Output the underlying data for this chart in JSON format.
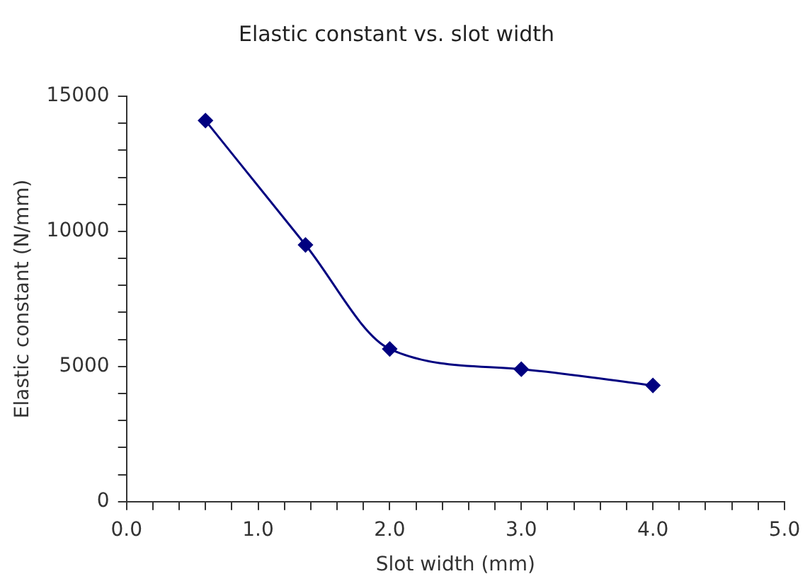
{
  "chart_data": {
    "type": "line",
    "title": "Elastic constant vs. slot width",
    "xlabel": "Slot width (mm)",
    "ylabel": "Elastic constant (N/mm)",
    "x": [
      0.6,
      1.36,
      2.0,
      3.0,
      4.0
    ],
    "series": [
      {
        "color": "#000080",
        "values": [
          14100,
          9500,
          5650,
          4900,
          4300
        ]
      }
    ],
    "xlim": [
      0,
      5
    ],
    "xticks": [
      {
        "value": 0,
        "label": "0.0"
      },
      {
        "value": 0.2,
        "label": null
      },
      {
        "value": 0.4,
        "label": null
      },
      {
        "value": 0.6,
        "label": null
      },
      {
        "value": 0.8,
        "label": null
      },
      {
        "value": 1,
        "label": "1.0"
      },
      {
        "value": 1.2,
        "label": null
      },
      {
        "value": 1.4,
        "label": null
      },
      {
        "value": 1.6,
        "label": null
      },
      {
        "value": 1.8,
        "label": null
      },
      {
        "value": 2,
        "label": "2.0"
      },
      {
        "value": 2.2,
        "label": null
      },
      {
        "value": 2.4,
        "label": null
      },
      {
        "value": 2.6,
        "label": null
      },
      {
        "value": 2.8,
        "label": null
      },
      {
        "value": 3,
        "label": "3.0"
      },
      {
        "value": 3.2,
        "label": null
      },
      {
        "value": 3.4,
        "label": null
      },
      {
        "value": 3.6,
        "label": null
      },
      {
        "value": 3.8,
        "label": null
      },
      {
        "value": 4,
        "label": "4.0"
      },
      {
        "value": 4.2,
        "label": null
      },
      {
        "value": 4.4,
        "label": null
      },
      {
        "value": 4.6,
        "label": null
      },
      {
        "value": 4.8,
        "label": null
      },
      {
        "value": 5,
        "label": "5.0"
      }
    ],
    "ylim": [
      0,
      15000
    ],
    "yticks": [
      0,
      {
        "value": 1000,
        "label": null
      },
      {
        "value": 2000,
        "label": null
      },
      {
        "value": 3000,
        "label": null
      },
      {
        "value": 4000,
        "label": null
      },
      5000,
      {
        "value": 6000,
        "label": null
      },
      {
        "value": 7000,
        "label": null
      },
      {
        "value": 8000,
        "label": null
      },
      {
        "value": 9000,
        "label": null
      },
      10000,
      {
        "value": 11000,
        "label": null
      },
      {
        "value": 12000,
        "label": null
      },
      {
        "value": 13000,
        "label": null
      },
      {
        "value": 14000,
        "label": null
      },
      15000
    ],
    "grid": false,
    "legend": false,
    "marker": "diamond",
    "line_style": "solid"
  }
}
